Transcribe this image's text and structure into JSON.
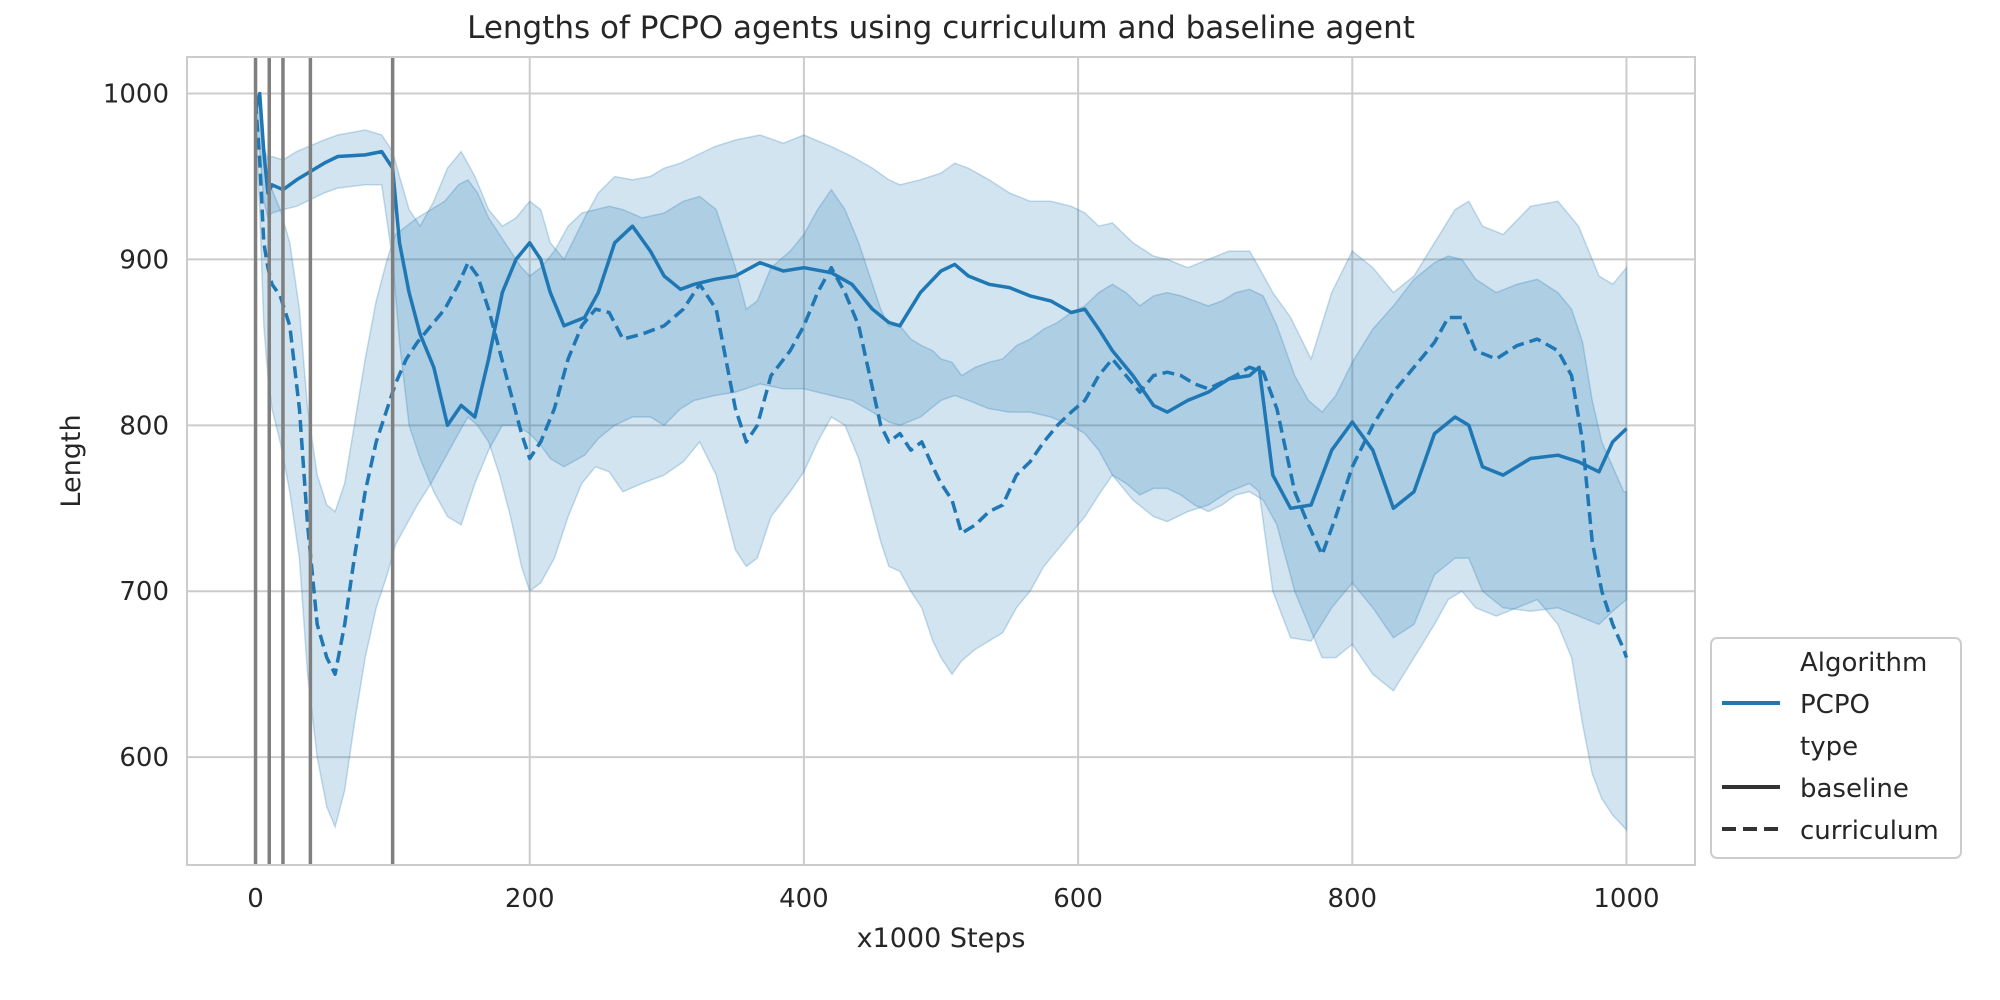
{
  "chart_data": {
    "type": "line",
    "title": "Lengths of PCPO agents using curriculum and baseline agent",
    "xlabel": "x1000 Steps",
    "ylabel": "Length",
    "xlim": [
      -50,
      1050
    ],
    "ylim": [
      535,
      1022
    ],
    "x_ticks": [
      0,
      200,
      400,
      600,
      800,
      1000
    ],
    "y_ticks": [
      600,
      700,
      800,
      900,
      1000
    ],
    "grid": true,
    "vertical_markers": [
      0,
      10,
      20,
      40,
      100
    ],
    "colors": {
      "series": "#1f77b4",
      "band": "#1f77b4",
      "marker": "#7f7f7f",
      "grid": "#cccccc"
    },
    "legend": {
      "placement": "right-bottom",
      "entries": [
        {
          "label": "Algorithm",
          "style": "heading"
        },
        {
          "label": "PCPO",
          "style": "line-colored"
        },
        {
          "label": "type",
          "style": "heading"
        },
        {
          "label": "baseline",
          "style": "line-solid"
        },
        {
          "label": "curriculum",
          "style": "line-dashed"
        }
      ]
    },
    "series": [
      {
        "name": "baseline",
        "algorithm": "PCPO",
        "dash": "solid",
        "x": [
          0,
          3,
          6,
          9,
          12,
          20,
          30,
          50,
          60,
          80,
          92,
          100,
          105,
          112,
          120,
          130,
          140,
          150,
          160,
          170,
          180,
          190,
          200,
          208,
          215,
          225,
          240,
          250,
          262,
          275,
          288,
          298,
          310,
          320,
          335,
          350,
          368,
          385,
          400,
          420,
          435,
          450,
          462,
          470,
          485,
          500,
          510,
          520,
          535,
          550,
          565,
          580,
          595,
          605,
          615,
          625,
          640,
          655,
          665,
          680,
          695,
          710,
          725,
          732,
          742,
          755,
          770,
          785,
          800,
          815,
          830,
          845,
          860,
          875,
          885,
          895,
          910,
          930,
          950,
          965,
          980,
          990,
          1000
        ],
        "y": [
          990,
          1000,
          965,
          940,
          945,
          942,
          948,
          958,
          962,
          963,
          965,
          955,
          910,
          880,
          855,
          835,
          800,
          812,
          805,
          840,
          880,
          900,
          910,
          900,
          880,
          860,
          865,
          880,
          910,
          920,
          905,
          890,
          882,
          885,
          888,
          890,
          898,
          893,
          895,
          892,
          885,
          870,
          862,
          860,
          880,
          893,
          897,
          890,
          885,
          883,
          878,
          875,
          868,
          870,
          858,
          845,
          830,
          812,
          808,
          815,
          820,
          828,
          830,
          835,
          770,
          750,
          752,
          785,
          802,
          785,
          750,
          760,
          795,
          805,
          800,
          775,
          770,
          780,
          782,
          778,
          772,
          790,
          798
        ],
        "band_upper": [
          1000,
          995,
          968,
          960,
          962,
          960,
          965,
          972,
          975,
          978,
          975,
          965,
          950,
          930,
          920,
          935,
          955,
          965,
          950,
          930,
          920,
          925,
          935,
          930,
          910,
          900,
          925,
          940,
          950,
          948,
          950,
          955,
          958,
          962,
          968,
          972,
          975,
          970,
          975,
          968,
          962,
          955,
          948,
          945,
          948,
          952,
          958,
          955,
          948,
          940,
          935,
          935,
          932,
          928,
          920,
          922,
          910,
          902,
          900,
          895,
          900,
          905,
          905,
          895,
          880,
          865,
          840,
          880,
          905,
          895,
          880,
          890,
          910,
          930,
          935,
          920,
          915,
          932,
          935,
          920,
          890,
          885,
          895
        ],
        "band_lower": [
          975,
          965,
          935,
          925,
          928,
          930,
          932,
          940,
          943,
          945,
          945,
          900,
          850,
          800,
          780,
          760,
          745,
          740,
          765,
          785,
          800,
          800,
          795,
          788,
          780,
          775,
          782,
          792,
          800,
          805,
          805,
          800,
          810,
          815,
          818,
          820,
          825,
          822,
          822,
          818,
          815,
          808,
          802,
          800,
          805,
          815,
          818,
          815,
          810,
          808,
          808,
          805,
          800,
          795,
          785,
          770,
          755,
          745,
          742,
          748,
          752,
          760,
          765,
          760,
          700,
          672,
          670,
          690,
          705,
          690,
          672,
          680,
          710,
          720,
          720,
          700,
          690,
          688,
          690,
          685,
          680,
          688,
          695
        ]
      },
      {
        "name": "curriculum",
        "algorithm": "PCPO",
        "dash": "dashed",
        "x": [
          0,
          3,
          6,
          9,
          12,
          18,
          25,
          32,
          38,
          45,
          52,
          58,
          65,
          72,
          80,
          88,
          96,
          102,
          110,
          118,
          128,
          138,
          148,
          155,
          162,
          170,
          178,
          186,
          194,
          200,
          208,
          218,
          228,
          238,
          248,
          258,
          268,
          282,
          298,
          312,
          324,
          336,
          350,
          358,
          366,
          376,
          390,
          400,
          410,
          420,
          430,
          440,
          448,
          456,
          462,
          470,
          478,
          486,
          494,
          500,
          508,
          515,
          525,
          535,
          545,
          555,
          565,
          575,
          585,
          595,
          605,
          615,
          625,
          635,
          645,
          655,
          665,
          675,
          685,
          695,
          705,
          715,
          725,
          735,
          745,
          758,
          768,
          778,
          788,
          800,
          815,
          830,
          845,
          860,
          870,
          880,
          890,
          905,
          920,
          935,
          950,
          960,
          968,
          975,
          982,
          990,
          998,
          1000
        ],
        "y": [
          995,
          960,
          910,
          895,
          885,
          878,
          860,
          810,
          740,
          680,
          660,
          650,
          680,
          720,
          760,
          790,
          810,
          825,
          840,
          850,
          860,
          870,
          885,
          898,
          890,
          870,
          845,
          820,
          795,
          780,
          790,
          810,
          840,
          860,
          870,
          868,
          852,
          855,
          860,
          870,
          885,
          870,
          810,
          790,
          800,
          830,
          845,
          860,
          880,
          895,
          880,
          860,
          830,
          800,
          790,
          795,
          785,
          790,
          775,
          765,
          755,
          735,
          740,
          748,
          752,
          770,
          778,
          790,
          800,
          808,
          815,
          830,
          840,
          830,
          820,
          830,
          832,
          830,
          825,
          822,
          826,
          830,
          835,
          832,
          810,
          760,
          740,
          722,
          745,
          775,
          800,
          820,
          835,
          850,
          865,
          865,
          845,
          840,
          848,
          852,
          845,
          830,
          790,
          730,
          700,
          680,
          665,
          660
        ],
        "band_upper": [
          1000,
          990,
          960,
          950,
          942,
          930,
          910,
          870,
          810,
          770,
          752,
          748,
          765,
          800,
          840,
          875,
          900,
          915,
          920,
          925,
          930,
          935,
          945,
          948,
          940,
          925,
          915,
          905,
          895,
          890,
          895,
          905,
          920,
          928,
          930,
          932,
          930,
          925,
          928,
          935,
          938,
          930,
          895,
          870,
          875,
          895,
          905,
          915,
          930,
          942,
          930,
          910,
          890,
          870,
          860,
          860,
          852,
          848,
          845,
          840,
          838,
          830,
          835,
          838,
          840,
          848,
          852,
          858,
          862,
          868,
          872,
          880,
          885,
          880,
          872,
          878,
          880,
          878,
          875,
          872,
          875,
          880,
          882,
          878,
          860,
          830,
          815,
          808,
          818,
          838,
          858,
          872,
          888,
          898,
          902,
          900,
          888,
          880,
          885,
          888,
          880,
          870,
          850,
          815,
          790,
          775,
          760,
          760
        ],
        "band_lower": [
          980,
          930,
          860,
          830,
          810,
          790,
          760,
          720,
          650,
          600,
          570,
          558,
          580,
          620,
          660,
          690,
          710,
          728,
          740,
          752,
          765,
          780,
          795,
          805,
          800,
          790,
          770,
          745,
          715,
          700,
          705,
          720,
          745,
          765,
          775,
          772,
          760,
          765,
          770,
          778,
          790,
          770,
          725,
          715,
          720,
          745,
          760,
          772,
          790,
          805,
          800,
          780,
          755,
          730,
          715,
          712,
          700,
          690,
          670,
          660,
          650,
          658,
          665,
          670,
          675,
          690,
          700,
          715,
          725,
          735,
          745,
          758,
          770,
          765,
          758,
          762,
          762,
          758,
          752,
          748,
          752,
          758,
          760,
          755,
          740,
          700,
          680,
          660,
          660,
          668,
          650,
          640,
          660,
          680,
          695,
          700,
          690,
          685,
          690,
          695,
          680,
          660,
          620,
          590,
          575,
          565,
          558,
          556
        ]
      }
    ]
  }
}
